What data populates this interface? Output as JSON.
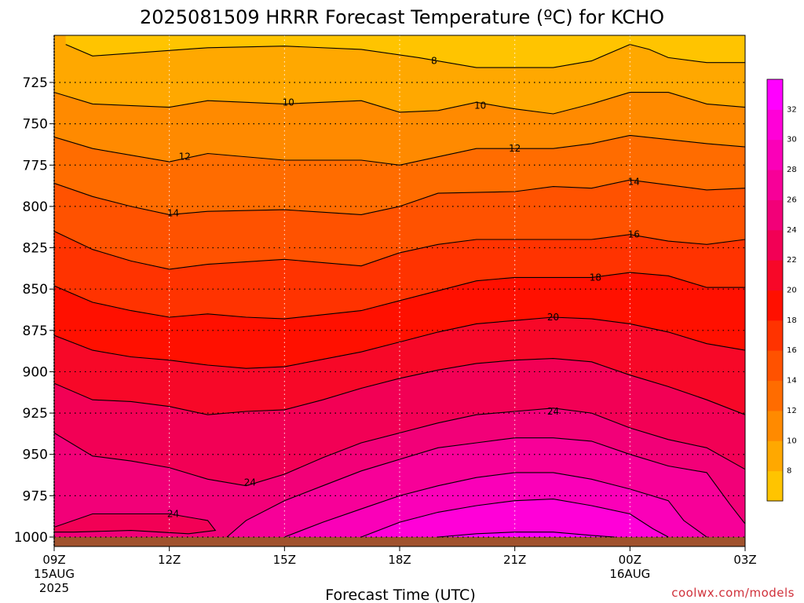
{
  "chart_data": {
    "type": "heatmap",
    "title": "2025081509 HRRR Forecast Temperature (ºC) for KCHO",
    "xlabel": "Forecast Time (UTC)",
    "ylabel": "",
    "credit": "coolwx.com/models",
    "x_ticks": [
      {
        "hour": 0,
        "label": "09Z",
        "sub1": "15AUG",
        "sub2": "2025"
      },
      {
        "hour": 3,
        "label": "12Z",
        "sub1": "",
        "sub2": ""
      },
      {
        "hour": 6,
        "label": "15Z",
        "sub1": "",
        "sub2": ""
      },
      {
        "hour": 9,
        "label": "18Z",
        "sub1": "",
        "sub2": ""
      },
      {
        "hour": 12,
        "label": "21Z",
        "sub1": "",
        "sub2": ""
      },
      {
        "hour": 15,
        "label": "00Z",
        "sub1": "16AUG",
        "sub2": ""
      },
      {
        "hour": 18,
        "label": "03Z",
        "sub1": "",
        "sub2": ""
      }
    ],
    "y_ticks": [
      725,
      750,
      775,
      800,
      825,
      850,
      875,
      900,
      925,
      950,
      975,
      1000
    ],
    "ylim": [
      1000,
      702
    ],
    "xlim": [
      0,
      18
    ],
    "levels": [
      8,
      10,
      12,
      14,
      16,
      18,
      20,
      22,
      24,
      26,
      28,
      30,
      32
    ],
    "colors": [
      "#ffc400",
      "#ffa800",
      "#ff8a00",
      "#ff6c00",
      "#ff5200",
      "#ff3300",
      "#ff1000",
      "#f70828",
      "#f20055",
      "#f20078",
      "#f70098",
      "#fa00b8",
      "#ff00d8",
      "#ff00ff"
    ],
    "colorbar_ticks": [
      8,
      10,
      12,
      14,
      16,
      18,
      20,
      22,
      24,
      26,
      28,
      30,
      32
    ],
    "contours": [
      {
        "value": 8,
        "points": [
          [
            0.3,
            702
          ],
          [
            1,
            709
          ],
          [
            4,
            704
          ],
          [
            6,
            703
          ],
          [
            8,
            705
          ],
          [
            9.5,
            710
          ],
          [
            11,
            716
          ],
          [
            13,
            716
          ],
          [
            14,
            712
          ],
          [
            15,
            702
          ]
        ]
      },
      {
        "value": 8,
        "points": [
          [
            15,
            702
          ],
          [
            15.5,
            705
          ],
          [
            16,
            710
          ],
          [
            17,
            713
          ],
          [
            18,
            713
          ]
        ]
      },
      {
        "value": 10,
        "points": [
          [
            0,
            731
          ],
          [
            1,
            738
          ],
          [
            3,
            740
          ],
          [
            4,
            736
          ],
          [
            6,
            738
          ],
          [
            8,
            736
          ],
          [
            9,
            743
          ],
          [
            10,
            742
          ],
          [
            11,
            737
          ],
          [
            12,
            741
          ],
          [
            13,
            744
          ],
          [
            14,
            738
          ],
          [
            15,
            731
          ],
          [
            16,
            731
          ],
          [
            17,
            738
          ],
          [
            18,
            740
          ]
        ]
      },
      {
        "value": 12,
        "points": [
          [
            0,
            758
          ],
          [
            1,
            765
          ],
          [
            3,
            773
          ],
          [
            4,
            768
          ],
          [
            6,
            772
          ],
          [
            8,
            772
          ],
          [
            9,
            775
          ],
          [
            10,
            770
          ],
          [
            11,
            765
          ],
          [
            12,
            765
          ],
          [
            13,
            765
          ],
          [
            14,
            762
          ],
          [
            15,
            757
          ],
          [
            17,
            762
          ],
          [
            18,
            764
          ]
        ]
      },
      {
        "value": 14,
        "points": [
          [
            0,
            786
          ],
          [
            1,
            794
          ],
          [
            2,
            800
          ],
          [
            3,
            805
          ],
          [
            4,
            803
          ],
          [
            6,
            802
          ],
          [
            8,
            805
          ],
          [
            9,
            800
          ],
          [
            10,
            792
          ],
          [
            12,
            791
          ],
          [
            13,
            788
          ],
          [
            14,
            789
          ],
          [
            15,
            784
          ],
          [
            17,
            790
          ],
          [
            18,
            789
          ]
        ]
      },
      {
        "value": 16,
        "points": [
          [
            0,
            815
          ],
          [
            1,
            826
          ],
          [
            2,
            833
          ],
          [
            3,
            838
          ],
          [
            4,
            835
          ],
          [
            6,
            832
          ],
          [
            8,
            836
          ],
          [
            9,
            828
          ],
          [
            10,
            823
          ],
          [
            11,
            820
          ],
          [
            12,
            820
          ],
          [
            13,
            820
          ],
          [
            14,
            820
          ],
          [
            15,
            817
          ],
          [
            16,
            821
          ],
          [
            17,
            823
          ],
          [
            18,
            820
          ]
        ]
      },
      {
        "value": 18,
        "points": [
          [
            0,
            848
          ],
          [
            1,
            858
          ],
          [
            2,
            863
          ],
          [
            3,
            867
          ],
          [
            4,
            865
          ],
          [
            5,
            867
          ],
          [
            6,
            868
          ],
          [
            8,
            863
          ],
          [
            9,
            857
          ],
          [
            10,
            851
          ],
          [
            11,
            845
          ],
          [
            12,
            843
          ],
          [
            13,
            843
          ],
          [
            14,
            843
          ],
          [
            15,
            840
          ],
          [
            16,
            842
          ],
          [
            17,
            849
          ],
          [
            18,
            849
          ]
        ]
      },
      {
        "value": 20,
        "points": [
          [
            0,
            878
          ],
          [
            1,
            887
          ],
          [
            2,
            891
          ],
          [
            3,
            893
          ],
          [
            4,
            896
          ],
          [
            5,
            898
          ],
          [
            6,
            897
          ],
          [
            8,
            888
          ],
          [
            9,
            882
          ],
          [
            10,
            876
          ],
          [
            11,
            871
          ],
          [
            12,
            869
          ],
          [
            13,
            867
          ],
          [
            14,
            868
          ],
          [
            15,
            871
          ],
          [
            16,
            876
          ],
          [
            17,
            883
          ],
          [
            18,
            887
          ]
        ]
      },
      {
        "value": 22,
        "points": [
          [
            0,
            907
          ],
          [
            1,
            917
          ],
          [
            2,
            918
          ],
          [
            3,
            921
          ],
          [
            4,
            926
          ],
          [
            5,
            924
          ],
          [
            6,
            923
          ],
          [
            7,
            917
          ],
          [
            8,
            910
          ],
          [
            9,
            904
          ],
          [
            10,
            899
          ],
          [
            11,
            895
          ],
          [
            12,
            893
          ],
          [
            13,
            892
          ],
          [
            14,
            894
          ],
          [
            15,
            902
          ],
          [
            16,
            909
          ],
          [
            17,
            917
          ],
          [
            18,
            926
          ]
        ]
      },
      {
        "value": 24,
        "points": [
          [
            0,
            937
          ],
          [
            1,
            951
          ],
          [
            2,
            954
          ],
          [
            3,
            958
          ],
          [
            4,
            965
          ],
          [
            5,
            969
          ],
          [
            6,
            962
          ],
          [
            7,
            952
          ],
          [
            8,
            943
          ],
          [
            9,
            937
          ],
          [
            10,
            931
          ],
          [
            11,
            926
          ],
          [
            12,
            924
          ],
          [
            13,
            922
          ],
          [
            14,
            925
          ],
          [
            15,
            934
          ],
          [
            16,
            941
          ],
          [
            17,
            946
          ],
          [
            18,
            959
          ]
        ]
      },
      {
        "value": 24,
        "points": [
          [
            0,
            994
          ],
          [
            1,
            986
          ],
          [
            2,
            986
          ],
          [
            3,
            986
          ],
          [
            4,
            990
          ],
          [
            4.2,
            996
          ],
          [
            3.5,
            998
          ],
          [
            2,
            996
          ],
          [
            0.5,
            997
          ],
          [
            0,
            997
          ]
        ]
      },
      {
        "value": 26,
        "points": [
          [
            4.5,
            1000
          ],
          [
            5,
            990
          ],
          [
            6,
            978
          ],
          [
            7,
            969
          ],
          [
            8,
            960
          ],
          [
            9,
            953
          ],
          [
            10,
            946
          ],
          [
            11,
            943
          ],
          [
            12,
            940
          ],
          [
            13,
            940
          ],
          [
            14,
            942
          ],
          [
            15,
            950
          ],
          [
            16,
            957
          ],
          [
            17,
            961
          ],
          [
            17.6,
            980
          ],
          [
            18,
            992
          ]
        ]
      },
      {
        "value": 28,
        "points": [
          [
            6,
            1000
          ],
          [
            7,
            991
          ],
          [
            8,
            983
          ],
          [
            9,
            975
          ],
          [
            10,
            969
          ],
          [
            11,
            964
          ],
          [
            12,
            961
          ],
          [
            13,
            961
          ],
          [
            14,
            965
          ],
          [
            15,
            971
          ],
          [
            16,
            978
          ],
          [
            16.4,
            990
          ],
          [
            17,
            1000
          ]
        ]
      },
      {
        "value": 30,
        "points": [
          [
            8,
            1000
          ],
          [
            9,
            991
          ],
          [
            10,
            985
          ],
          [
            11,
            981
          ],
          [
            12,
            978
          ],
          [
            13,
            977
          ],
          [
            14,
            981
          ],
          [
            15,
            986
          ],
          [
            15.6,
            995
          ],
          [
            16,
            1000
          ]
        ]
      },
      {
        "value": 32,
        "points": [
          [
            10,
            1000
          ],
          [
            11,
            998
          ],
          [
            12,
            997
          ],
          [
            13,
            997
          ],
          [
            14,
            999
          ],
          [
            14.6,
            1000
          ]
        ]
      }
    ],
    "contour_labels": [
      {
        "value": 8,
        "x": 9.9,
        "p": 712
      },
      {
        "value": 10,
        "x": 6.1,
        "p": 737
      },
      {
        "value": 10,
        "x": 11.1,
        "p": 739
      },
      {
        "value": 12,
        "x": 3.4,
        "p": 770
      },
      {
        "value": 12,
        "x": 12.0,
        "p": 765
      },
      {
        "value": 14,
        "x": 3.1,
        "p": 804
      },
      {
        "value": 14,
        "x": 15.1,
        "p": 785
      },
      {
        "value": 16,
        "x": 15.1,
        "p": 817
      },
      {
        "value": 18,
        "x": 14.1,
        "p": 843
      },
      {
        "value": 20,
        "x": 13.0,
        "p": 867
      },
      {
        "value": 24,
        "x": 13.0,
        "p": 924
      },
      {
        "value": 24,
        "x": 5.1,
        "p": 967
      },
      {
        "value": 24,
        "x": 3.1,
        "p": 986
      }
    ]
  }
}
